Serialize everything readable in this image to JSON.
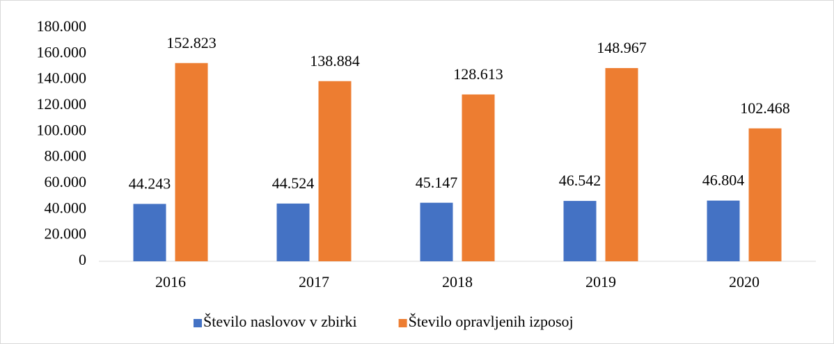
{
  "chart_data": {
    "type": "bar",
    "categories": [
      "2016",
      "2017",
      "2018",
      "2019",
      "2020"
    ],
    "series": [
      {
        "name": "Število naslovov v zbirki",
        "color": "#4472c4",
        "values": [
          44243,
          44524,
          45147,
          46542,
          46804
        ],
        "value_labels": [
          "44.243",
          "44.524",
          "45.147",
          "46.542",
          "46.804"
        ]
      },
      {
        "name": "Število opravljenih izposoj",
        "color": "#ed7d31",
        "values": [
          152823,
          138884,
          128613,
          148967,
          102468
        ],
        "value_labels": [
          "152.823",
          "138.884",
          "128.613",
          "148.967",
          "102.468"
        ]
      }
    ],
    "ylim": [
      0,
      180000
    ],
    "yticks": [
      0,
      {
        "value": 20000,
        "label": "20.000"
      },
      {
        "value": 40000,
        "label": "40.000"
      },
      {
        "value": 60000,
        "label": "60.000"
      },
      {
        "value": 80000,
        "label": "80.000"
      },
      {
        "value": 100000,
        "label": "100.000"
      },
      {
        "value": 120000,
        "label": "120.000"
      },
      {
        "value": 140000,
        "label": "140.000"
      },
      {
        "value": 160000,
        "label": "160.000"
      },
      {
        "value": 180000,
        "label": "180.000"
      }
    ],
    "grid": false,
    "legend": "bottom"
  }
}
